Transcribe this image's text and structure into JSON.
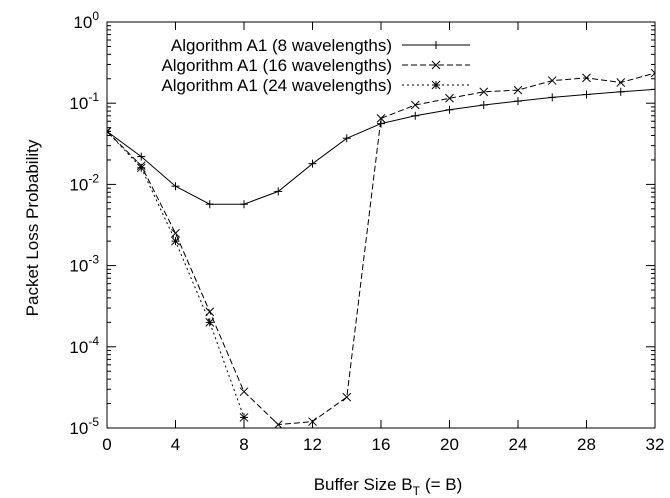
{
  "chart_data": {
    "type": "line",
    "xlabel": "Buffer Size B",
    "xlabel_sub": "T",
    "xlabel_suffix": "(= B)",
    "ylabel": "Packet Loss Probability",
    "xlim": [
      0,
      32
    ],
    "ylim": [
      1e-05,
      1
    ],
    "yscale": "log",
    "grid": false,
    "legend_position": "top-left",
    "x_ticks": [
      0,
      4,
      8,
      12,
      16,
      20,
      24,
      28,
      32
    ],
    "y_ticks": [
      {
        "value": 1,
        "base": "10",
        "exp": "0"
      },
      {
        "value": 0.1,
        "base": "10",
        "exp": "-1"
      },
      {
        "value": 0.01,
        "base": "10",
        "exp": "-2"
      },
      {
        "value": 0.001,
        "base": "10",
        "exp": "-3"
      },
      {
        "value": 0.0001,
        "base": "10",
        "exp": "-4"
      },
      {
        "value": 1e-05,
        "base": "10",
        "exp": "-5"
      }
    ],
    "series": [
      {
        "name": "Algorithm A1 (8 wavelengths)",
        "marker": "plus",
        "dash": "",
        "x": [
          0,
          2,
          4,
          6,
          8,
          10,
          12,
          14,
          16,
          18,
          20,
          22,
          24,
          26,
          28,
          30,
          32
        ],
        "y": [
          0.045,
          0.022,
          0.0095,
          0.0057,
          0.0057,
          0.0082,
          0.018,
          0.037,
          0.056,
          0.07,
          0.083,
          0.095,
          0.106,
          0.118,
          0.128,
          0.138,
          0.148
        ]
      },
      {
        "name": "Algorithm A1 (16 wavelengths)",
        "marker": "cross",
        "dash": "6,3",
        "x": [
          0,
          2,
          4,
          6,
          8,
          10,
          12,
          14,
          16,
          18,
          20,
          22,
          24,
          26,
          28,
          30,
          32
        ],
        "y": [
          0.045,
          0.017,
          0.0025,
          0.00027,
          2.8e-05,
          1.1e-05,
          1.2e-05,
          2.4e-05,
          0.065,
          0.095,
          0.115,
          0.138,
          0.145,
          0.19,
          0.205,
          0.18,
          0.235
        ]
      },
      {
        "name": "Algorithm A1 (24 wavelengths)",
        "marker": "star",
        "dash": "2,3",
        "x": [
          0,
          2,
          4,
          6,
          8
        ],
        "y": [
          0.045,
          0.016,
          0.002,
          0.0002,
          1.35e-05
        ]
      }
    ]
  }
}
